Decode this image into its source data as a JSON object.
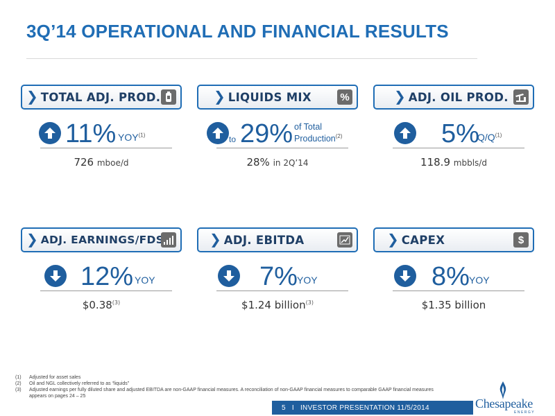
{
  "title": "3Q’14 OPERATIONAL AND FINANCIAL RESULTS",
  "tiles": {
    "total_prod": {
      "label": "TOTAL ADJ. PROD.",
      "value": "11%",
      "suffix": "YOY",
      "sup": "(1)",
      "sub_value": "726",
      "sub_unit": "mboe/d"
    },
    "liquids": {
      "label": "LIQUIDS MIX",
      "pre": "to",
      "value": "29%",
      "suffix_line1": "of Total",
      "suffix_line2": "Production",
      "sup": "(2)",
      "sub_value": "28%",
      "sub_unit": "in 2Q’14",
      "icon_glyph": "%"
    },
    "oil_prod": {
      "label": "ADJ. OIL PROD.",
      "value": "5%",
      "suffix": "Q/Q",
      "sup": "(1)",
      "sub_value": "118.9",
      "sub_unit": "mbbls/d"
    },
    "earnings": {
      "label": "ADJ. EARNINGS/FDS",
      "value": "12%",
      "suffix": "YOY",
      "sub_value": "$0.38",
      "sup": "(3)"
    },
    "ebitda": {
      "label": "ADJ. EBITDA",
      "value": "7%",
      "suffix": "YOY",
      "sub_value": "$1.24 billion",
      "sup": "(3)"
    },
    "capex": {
      "label": "CAPEX",
      "value": "8%",
      "suffix": "YOY",
      "sub_value": "$1.35 billion",
      "icon_glyph": "$"
    }
  },
  "footnotes": [
    {
      "num": "(1)",
      "text": "Adjusted for asset sales"
    },
    {
      "num": "(2)",
      "text": "Oil and NGL collectively referred to as “liquids”"
    },
    {
      "num": "(3)",
      "text": "Adjusted earnings per fully diluted share and adjusted EBITDA are non-GAAP financial measures.  A reconciliation of non-GAAP financial measures to comparable GAAP financial measures appears on pages 24 – 25"
    }
  ],
  "footer": {
    "page": "5",
    "sep": "I",
    "text": "INVESTOR PRESENTATION  11/5/2014"
  },
  "logo": {
    "word": "Chesapeake",
    "tagline": "ENERGY"
  },
  "colors": {
    "accent": "#1f6db5",
    "dark_blue": "#1f5e9e",
    "icon_gray": "#6b6b6b"
  }
}
